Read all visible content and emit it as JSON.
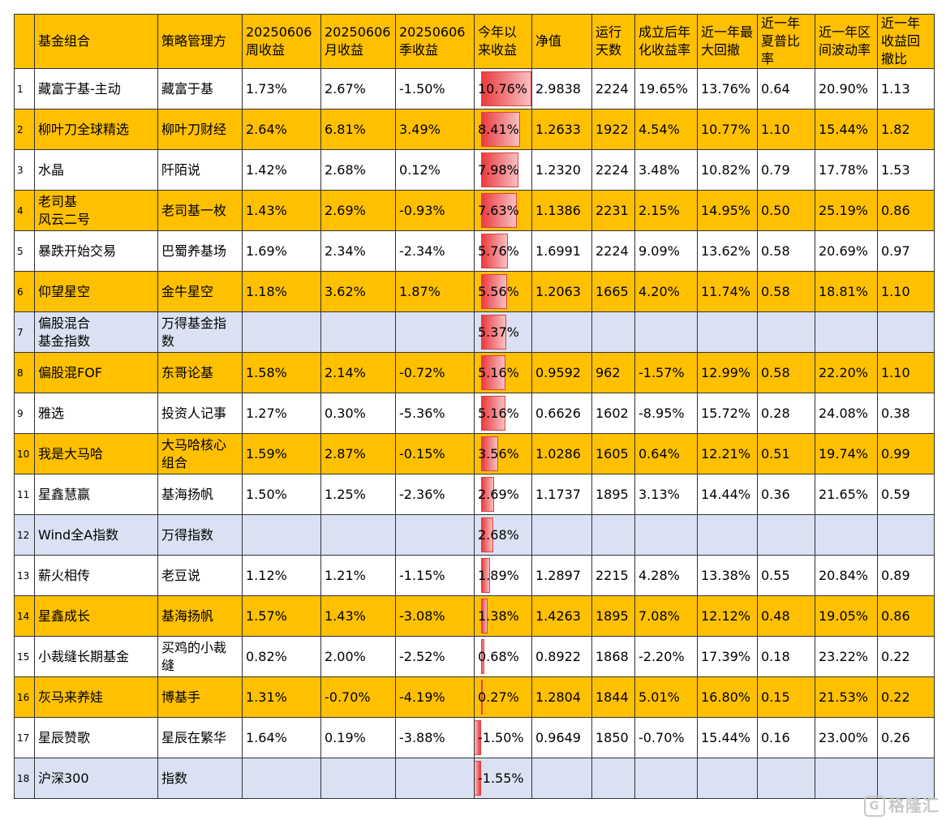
{
  "headers": [
    "",
    "基金组合",
    "策略管理方",
    "20250606周收益",
    "20250606月收益",
    "20250606季收益",
    "今年以来收益",
    "净值",
    "运行天数",
    "成立后年化收益率",
    "近一年最大回撤",
    "近一年夏普比率",
    "近一年区间波动率",
    "近一年收益回撤比"
  ],
  "rows": [
    {
      "idx": "1",
      "name": "藏富于基-主动",
      "mgr": "藏富于基",
      "week": "1.73%",
      "month": "2.67%",
      "quarter": "-1.50%",
      "ytd": "10.76%",
      "ytd_value": 10.76,
      "nav": "2.9838",
      "days": "2224",
      "annual": "19.65%",
      "maxdd": "13.76%",
      "sharpe": "0.64",
      "vol": "20.90%",
      "ratio": "1.13",
      "style": "white"
    },
    {
      "idx": "2",
      "name": "柳叶刀全球精选",
      "mgr": "柳叶刀财经",
      "week": "2.64%",
      "month": "6.81%",
      "quarter": "3.49%",
      "ytd": "8.41%",
      "ytd_value": 8.41,
      "nav": "1.2633",
      "days": "1922",
      "annual": "4.54%",
      "maxdd": "10.77%",
      "sharpe": "1.10",
      "vol": "15.44%",
      "ratio": "1.82",
      "style": "orange"
    },
    {
      "idx": "3",
      "name": "水晶",
      "mgr": "阡陌说",
      "week": "1.42%",
      "month": "2.68%",
      "quarter": "0.12%",
      "ytd": "7.98%",
      "ytd_value": 7.98,
      "nav": "1.2320",
      "days": "2224",
      "annual": "3.48%",
      "maxdd": "10.82%",
      "sharpe": "0.79",
      "vol": "17.78%",
      "ratio": "1.53",
      "style": "white"
    },
    {
      "idx": "4",
      "name": "老司基\n风云二号",
      "mgr": "老司基一枚",
      "week": "1.43%",
      "month": "2.69%",
      "quarter": "-0.93%",
      "ytd": "7.63%",
      "ytd_value": 7.63,
      "nav": "1.1386",
      "days": "2231",
      "annual": "2.15%",
      "maxdd": "14.95%",
      "sharpe": "0.50",
      "vol": "25.19%",
      "ratio": "0.86",
      "style": "orange"
    },
    {
      "idx": "5",
      "name": "暴跌开始交易",
      "mgr": "巴蜀养基场",
      "week": "1.69%",
      "month": "2.34%",
      "quarter": "-2.34%",
      "ytd": "5.76%",
      "ytd_value": 5.76,
      "nav": "1.6991",
      "days": "2224",
      "annual": "9.09%",
      "maxdd": "13.62%",
      "sharpe": "0.58",
      "vol": "20.69%",
      "ratio": "0.97",
      "style": "white"
    },
    {
      "idx": "6",
      "name": "仰望星空",
      "mgr": "金牛星空",
      "week": "1.18%",
      "month": "3.62%",
      "quarter": "1.87%",
      "ytd": "5.56%",
      "ytd_value": 5.56,
      "nav": "1.2063",
      "days": "1665",
      "annual": "4.20%",
      "maxdd": "11.74%",
      "sharpe": "0.58",
      "vol": "18.81%",
      "ratio": "1.10",
      "style": "orange"
    },
    {
      "idx": "7",
      "name": "偏股混合\n基金指数",
      "mgr": "万得基金指数",
      "week": "",
      "month": "",
      "quarter": "",
      "ytd": "5.37%",
      "ytd_value": 5.37,
      "nav": "",
      "days": "",
      "annual": "",
      "maxdd": "",
      "sharpe": "",
      "vol": "",
      "ratio": "",
      "style": "blue"
    },
    {
      "idx": "8",
      "name": "偏股混FOF",
      "mgr": "东哥论基",
      "week": "1.58%",
      "month": "2.14%",
      "quarter": "-0.72%",
      "ytd": "5.16%",
      "ytd_value": 5.16,
      "nav": "0.9592",
      "days": "962",
      "annual": "-1.57%",
      "maxdd": "12.99%",
      "sharpe": "0.58",
      "vol": "22.20%",
      "ratio": "1.10",
      "style": "orange"
    },
    {
      "idx": "9",
      "name": "雅选",
      "mgr": "投资人记事",
      "week": "1.27%",
      "month": "0.30%",
      "quarter": "-5.36%",
      "ytd": "5.16%",
      "ytd_value": 5.16,
      "nav": "0.6626",
      "days": "1602",
      "annual": "-8.95%",
      "maxdd": "15.72%",
      "sharpe": "0.28",
      "vol": "24.08%",
      "ratio": "0.38",
      "style": "white"
    },
    {
      "idx": "10",
      "name": "我是大马哈",
      "mgr": "大马哈核心组合",
      "week": "1.59%",
      "month": "2.87%",
      "quarter": "-0.15%",
      "ytd": "3.56%",
      "ytd_value": 3.56,
      "nav": "1.0286",
      "days": "1605",
      "annual": "0.64%",
      "maxdd": "12.21%",
      "sharpe": "0.51",
      "vol": "19.74%",
      "ratio": "0.99",
      "style": "orange"
    },
    {
      "idx": "11",
      "name": "星鑫慧赢",
      "mgr": "基海扬帆",
      "week": "1.50%",
      "month": "1.25%",
      "quarter": "-2.36%",
      "ytd": "2.69%",
      "ytd_value": 2.69,
      "nav": "1.1737",
      "days": "1895",
      "annual": "3.13%",
      "maxdd": "14.44%",
      "sharpe": "0.36",
      "vol": "21.65%",
      "ratio": "0.59",
      "style": "white"
    },
    {
      "idx": "12",
      "name": "Wind全A指数",
      "mgr": "万得指数",
      "week": "",
      "month": "",
      "quarter": "",
      "ytd": "2.68%",
      "ytd_value": 2.68,
      "nav": "",
      "days": "",
      "annual": "",
      "maxdd": "",
      "sharpe": "",
      "vol": "",
      "ratio": "",
      "style": "blue"
    },
    {
      "idx": "13",
      "name": "薪火相传",
      "mgr": "老豆说",
      "week": "1.12%",
      "month": "1.21%",
      "quarter": "-1.15%",
      "ytd": "1.89%",
      "ytd_value": 1.89,
      "nav": "1.2897",
      "days": "2215",
      "annual": "4.28%",
      "maxdd": "13.38%",
      "sharpe": "0.55",
      "vol": "20.84%",
      "ratio": "0.89",
      "style": "white"
    },
    {
      "idx": "14",
      "name": "星鑫成长",
      "mgr": "基海扬帆",
      "week": "1.57%",
      "month": "1.43%",
      "quarter": "-3.08%",
      "ytd": "1.38%",
      "ytd_value": 1.38,
      "nav": "1.4263",
      "days": "1895",
      "annual": "7.08%",
      "maxdd": "12.12%",
      "sharpe": "0.48",
      "vol": "19.05%",
      "ratio": "0.86",
      "style": "orange"
    },
    {
      "idx": "15",
      "name": "小裁缝长期基金",
      "mgr": "买鸡的小裁缝",
      "week": "0.82%",
      "month": "2.00%",
      "quarter": "-2.52%",
      "ytd": "0.68%",
      "ytd_value": 0.68,
      "nav": "0.8922",
      "days": "1868",
      "annual": "-2.20%",
      "maxdd": "17.39%",
      "sharpe": "0.18",
      "vol": "23.22%",
      "ratio": "0.22",
      "style": "white"
    },
    {
      "idx": "16",
      "name": "灰马来养娃",
      "mgr": "博基手",
      "week": "1.31%",
      "month": "-0.70%",
      "quarter": "-4.19%",
      "ytd": "0.27%",
      "ytd_value": 0.27,
      "nav": "1.2804",
      "days": "1844",
      "annual": "5.01%",
      "maxdd": "16.80%",
      "sharpe": "0.15",
      "vol": "21.53%",
      "ratio": "0.22",
      "style": "orange"
    },
    {
      "idx": "17",
      "name": "星辰赞歌",
      "mgr": "星辰在繁华",
      "week": "1.64%",
      "month": "0.19%",
      "quarter": "-3.88%",
      "ytd": "-1.50%",
      "ytd_value": -1.5,
      "nav": "0.9649",
      "days": "1850",
      "annual": "-0.70%",
      "maxdd": "15.44%",
      "sharpe": "0.16",
      "vol": "23.00%",
      "ratio": "0.26",
      "style": "white"
    },
    {
      "idx": "18",
      "name": "沪深300",
      "mgr": "指数",
      "week": "",
      "month": "",
      "quarter": "",
      "ytd": "-1.55%",
      "ytd_value": -1.55,
      "nav": "",
      "days": "",
      "annual": "",
      "maxdd": "",
      "sharpe": "",
      "vol": "",
      "ratio": "",
      "style": "blue"
    }
  ],
  "watermark": {
    "logo": "G",
    "text": "格隆汇"
  },
  "colors": {
    "header_bg": "#FFC000",
    "orange_row": "#FFC000",
    "blue_row": "#D9E1F2",
    "bar": "#ea3b3f"
  }
}
